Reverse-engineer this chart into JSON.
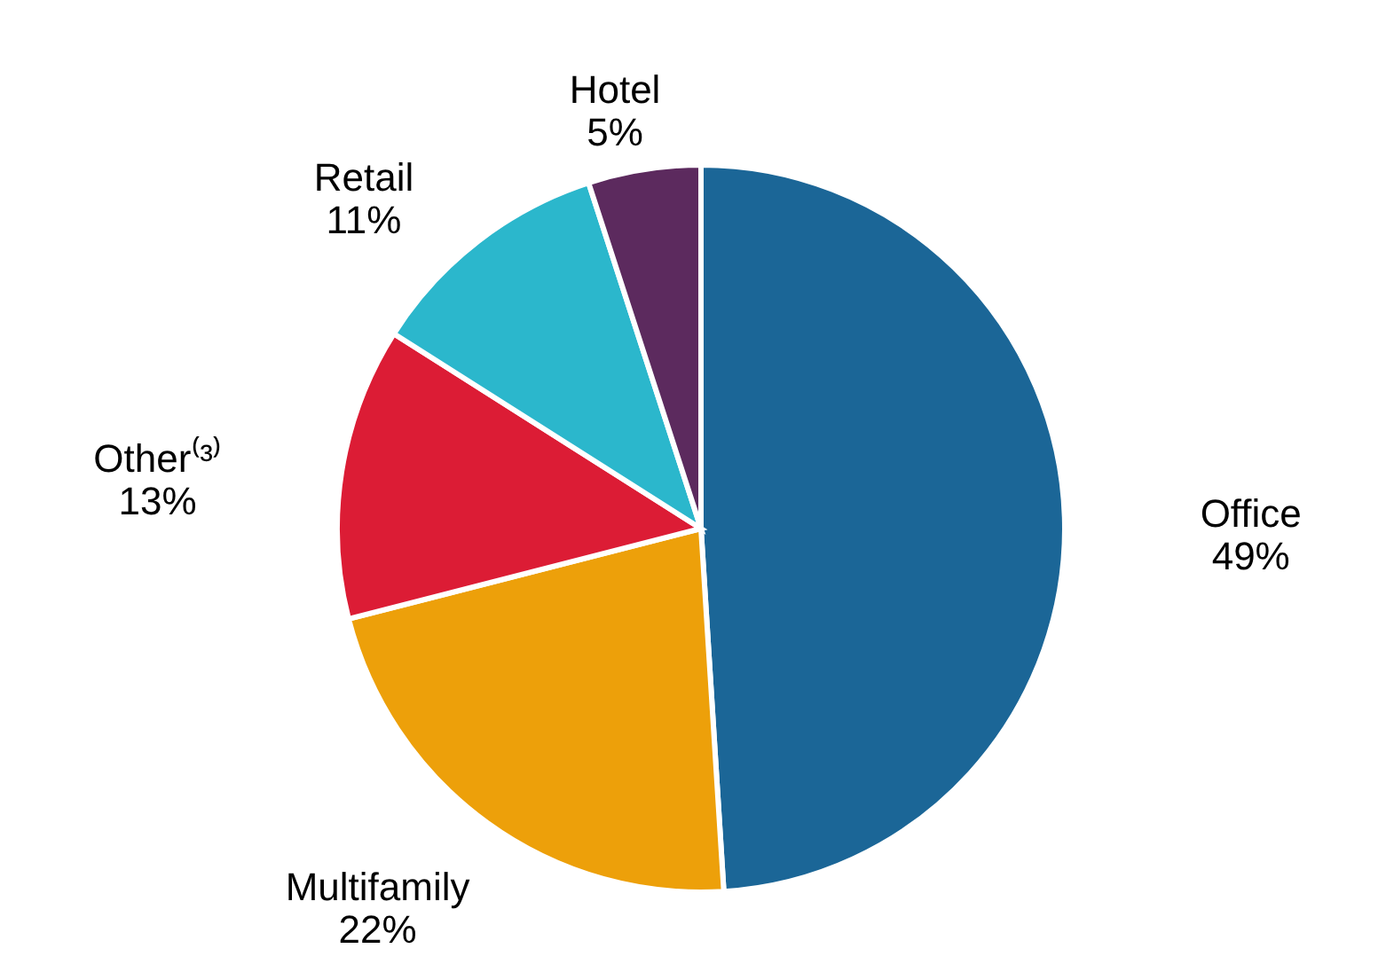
{
  "chart_data": {
    "type": "pie",
    "categories": [
      "Office",
      "Multifamily",
      "Other⁽³⁾",
      "Retail",
      "Hotel"
    ],
    "values": [
      49,
      22,
      13,
      11,
      5
    ],
    "value_labels": [
      "49%",
      "22%",
      "13%",
      "11%",
      "5%"
    ],
    "colors": [
      "#1b6697",
      "#eda00a",
      "#dc1c35",
      "#2bb7cc",
      "#5c2a5e"
    ]
  }
}
